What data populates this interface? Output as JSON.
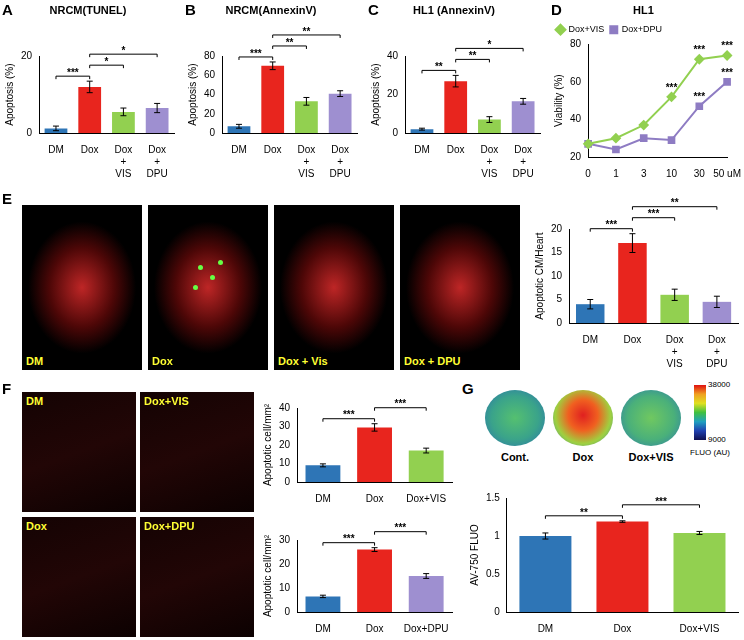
{
  "chart_data": [
    {
      "panel": "A",
      "type": "bar",
      "title": "NRCM(TUNEL)",
      "y_label": "Apoptosis (%)",
      "categories": [
        "DM",
        "Dox",
        "Dox + VIS",
        "Dox + DPU"
      ],
      "values": [
        1.2,
        12,
        5.5,
        6.5
      ],
      "errors": [
        0.6,
        1.5,
        1,
        1.2
      ],
      "colors": [
        "#2e75b6",
        "#e8251e",
        "#92d050",
        "#9e8fd0"
      ],
      "ylim": [
        0,
        20
      ],
      "yticks": [
        0,
        20
      ],
      "grid": false,
      "significance": [
        {
          "between": [
            "DM",
            "Dox"
          ],
          "label": "***"
        },
        {
          "between": [
            "Dox",
            "Dox + VIS"
          ],
          "label": "*"
        },
        {
          "between": [
            "Dox",
            "Dox + DPU"
          ],
          "label": "*"
        }
      ]
    },
    {
      "panel": "B",
      "type": "bar",
      "title": "NRCM(AnnexinV)",
      "y_label": "Apoptosis (%)",
      "categories": [
        "DM",
        "Dox",
        "Dox + VIS",
        "Dox + DPU"
      ],
      "values": [
        7,
        70,
        33,
        41
      ],
      "errors": [
        2,
        4,
        4,
        3
      ],
      "colors": [
        "#2e75b6",
        "#e8251e",
        "#92d050",
        "#9e8fd0"
      ],
      "ylim": [
        0,
        80
      ],
      "yticks": [
        0,
        20,
        40,
        60,
        80
      ],
      "grid": false,
      "significance": [
        {
          "between": [
            "DM",
            "Dox"
          ],
          "label": "***"
        },
        {
          "between": [
            "Dox",
            "Dox + VIS"
          ],
          "label": "**"
        },
        {
          "between": [
            "Dox",
            "Dox + DPU"
          ],
          "label": "**"
        }
      ]
    },
    {
      "panel": "C",
      "type": "bar",
      "title": "HL1 (AnnexinV)",
      "y_label": "Apoptosis (%)",
      "categories": [
        "DM",
        "Dox",
        "Dox + VIS",
        "Dox + DPU"
      ],
      "values": [
        2,
        27,
        7,
        16.5
      ],
      "errors": [
        0.5,
        3,
        1.5,
        1.5
      ],
      "colors": [
        "#2e75b6",
        "#e8251e",
        "#92d050",
        "#9e8fd0"
      ],
      "ylim": [
        0,
        40
      ],
      "yticks": [
        0,
        20,
        40
      ],
      "grid": false,
      "significance": [
        {
          "between": [
            "DM",
            "Dox"
          ],
          "label": "**"
        },
        {
          "between": [
            "Dox",
            "Dox + VIS"
          ],
          "label": "**"
        },
        {
          "between": [
            "Dox",
            "Dox + DPU"
          ],
          "label": "*"
        }
      ]
    },
    {
      "panel": "D",
      "type": "line",
      "title": "HL1",
      "y_label": "Viability (%)",
      "categories": [
        "0",
        "1",
        "3",
        "10",
        "30",
        "50 uM"
      ],
      "series": [
        {
          "name": "Dox+VIS",
          "color": "#92d050",
          "marker": "diamond",
          "values": [
            27,
            30,
            37,
            52,
            72,
            74
          ]
        },
        {
          "name": "Dox+DPU",
          "color": "#8e7cc3",
          "marker": "square",
          "values": [
            27,
            24,
            30,
            29,
            47,
            60
          ]
        }
      ],
      "ylim": [
        20,
        80
      ],
      "yticks": [
        20,
        40,
        60,
        80
      ],
      "grid": false,
      "legend": "top-left",
      "significance": [
        {
          "series": "Dox+VIS",
          "at": "10",
          "label": "***"
        },
        {
          "series": "Dox+VIS",
          "at": "30",
          "label": "***"
        },
        {
          "series": "Dox+VIS",
          "at": "50 uM",
          "label": "***"
        },
        {
          "series": "Dox+DPU",
          "at": "30",
          "label": "***"
        },
        {
          "series": "Dox+DPU",
          "at": "50 uM",
          "label": "***"
        }
      ]
    },
    {
      "type": "bar",
      "y_label": "Apoptotic CM/Heart",
      "categories": [
        "DM",
        "Dox",
        "Dox + VIS",
        "Dox + DPU"
      ],
      "values": [
        4,
        17,
        6,
        4.5
      ],
      "errors": [
        1,
        2,
        1.2,
        1.2
      ],
      "colors": [
        "#2e75b6",
        "#e8251e",
        "#92d050",
        "#9e8fd0"
      ],
      "ylim": [
        0,
        20
      ],
      "yticks": [
        0,
        5,
        10,
        15,
        20
      ],
      "grid": false,
      "significance": [
        {
          "between": [
            "DM",
            "Dox"
          ],
          "label": "***"
        },
        {
          "between": [
            "Dox",
            "Dox + VIS"
          ],
          "label": "***"
        },
        {
          "between": [
            "Dox",
            "Dox + DPU"
          ],
          "label": "**"
        }
      ]
    },
    {
      "type": "bar",
      "y_label": "Apoptotic cell/mm²",
      "categories": [
        "DM",
        "Dox",
        "Dox+VIS"
      ],
      "values": [
        9,
        29.5,
        17
      ],
      "errors": [
        0.8,
        2,
        1.3
      ],
      "colors": [
        "#2e75b6",
        "#e8251e",
        "#92d050"
      ],
      "ylim": [
        0,
        40
      ],
      "yticks": [
        0,
        10,
        20,
        30,
        40
      ],
      "grid": false,
      "significance": [
        {
          "between": [
            "DM",
            "Dox"
          ],
          "label": "***"
        },
        {
          "between": [
            "Dox",
            "Dox+VIS"
          ],
          "label": "***"
        }
      ]
    },
    {
      "type": "bar",
      "y_label": "Apoptotic cell/mm²",
      "categories": [
        "DM",
        "Dox",
        "Dox+DPU"
      ],
      "values": [
        6.5,
        26,
        15
      ],
      "errors": [
        0.5,
        0.8,
        1
      ],
      "colors": [
        "#2e75b6",
        "#e8251e",
        "#9e8fd0"
      ],
      "ylim": [
        0,
        30
      ],
      "yticks": [
        0,
        10,
        20,
        30
      ],
      "grid": false,
      "significance": [
        {
          "between": [
            "DM",
            "Dox"
          ],
          "label": "***"
        },
        {
          "between": [
            "Dox",
            "Dox+DPU"
          ],
          "label": "***"
        }
      ]
    },
    {
      "type": "bar",
      "y_label": "AV-750 FLUO",
      "categories": [
        "DM",
        "Dox",
        "Dox+VIS"
      ],
      "values": [
        1.0,
        1.19,
        1.04
      ],
      "errors": [
        0.04,
        0.01,
        0.02
      ],
      "colors": [
        "#2e75b6",
        "#e8251e",
        "#92d050"
      ],
      "ylim": [
        0,
        1.5
      ],
      "yticks": [
        0,
        0.5,
        1,
        1.5
      ],
      "grid": false,
      "significance": [
        {
          "between": [
            "DM",
            "Dox"
          ],
          "label": "**"
        },
        {
          "between": [
            "Dox",
            "Dox+VIS"
          ],
          "label": "***"
        }
      ]
    }
  ],
  "image_panels": [
    {
      "panel": "E",
      "labels": [
        "DM",
        "Dox",
        "Dox + Vis",
        "Dox + DPU"
      ]
    },
    {
      "panel": "F",
      "labels": [
        "DM",
        "Dox+VIS",
        "Dox",
        "Dox+DPU"
      ]
    },
    {
      "panel": "G",
      "labels": [
        "Cont.",
        "Dox",
        "Dox+VIS"
      ],
      "colorbar": {
        "label": "FLUO (AU)",
        "range": [
          9000,
          38000
        ],
        "ticks": [
          9000,
          38000
        ]
      }
    }
  ]
}
